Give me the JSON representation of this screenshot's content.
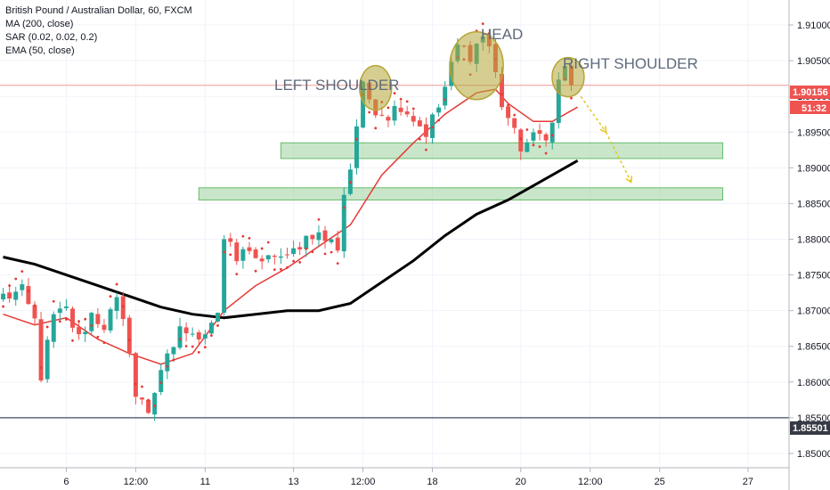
{
  "legend": {
    "title": "British Pound / Australian Dollar, 60, FXCM",
    "ma": "MA (200, close)",
    "sar": "SAR (0.02, 0.02, 0.2)",
    "ema": "EMA (50, close)"
  },
  "colors": {
    "bull": "#26a69a",
    "bear": "#ef5350",
    "ema": "#e53935",
    "ma": "#000000",
    "sar": "#e53935",
    "zone_fill": "#a5d6a7",
    "zone_stroke": "#66bb6a",
    "pattern_circle": "#b5a636",
    "projection": "#e6c619",
    "price_line": "#ef5350",
    "support_line": "#5d6a7a"
  },
  "chart_data": {
    "type": "candlestick",
    "symbol": "British Pound / Australian Dollar, 60, FXCM",
    "ylim": [
      1.848,
      1.9135
    ],
    "y_ticks": [
      "1.91000",
      "1.90500",
      "1.90000",
      "1.89500",
      "1.89000",
      "1.88500",
      "1.88000",
      "1.87500",
      "1.87000",
      "1.86500",
      "1.86000",
      "1.85500",
      "1.85000"
    ],
    "x_ticks": [
      "6",
      "12:00",
      "11",
      "13",
      "12:00",
      "18",
      "20",
      "12:00",
      "25",
      "27"
    ],
    "x_tick_bars": [
      10,
      21,
      32,
      46,
      57,
      68,
      82,
      93,
      104,
      118
    ],
    "bars_total": 125,
    "last_bar_index": 90,
    "current_price": "1.90156",
    "countdown": "51:32",
    "support_level": "1.85501",
    "support_value": 1.85501,
    "candles_anchor_close": [
      [
        0,
        1.872
      ],
      [
        3,
        1.8725
      ],
      [
        5,
        1.8685
      ],
      [
        6,
        1.861
      ],
      [
        8,
        1.869
      ],
      [
        10,
        1.87
      ],
      [
        12,
        1.866
      ],
      [
        14,
        1.8695
      ],
      [
        16,
        1.868
      ],
      [
        18,
        1.871
      ],
      [
        20,
        1.865
      ],
      [
        21,
        1.858
      ],
      [
        23,
        1.856
      ],
      [
        25,
        1.862
      ],
      [
        27,
        1.864
      ],
      [
        28,
        1.868
      ],
      [
        30,
        1.866
      ],
      [
        32,
        1.8675
      ],
      [
        34,
        1.87
      ],
      [
        35,
        1.88
      ],
      [
        37,
        1.877
      ],
      [
        39,
        1.879
      ],
      [
        41,
        1.876
      ],
      [
        43,
        1.878
      ],
      [
        45,
        1.877
      ],
      [
        47,
        1.8795
      ],
      [
        49,
        1.881
      ],
      [
        51,
        1.88
      ],
      [
        53,
        1.879
      ],
      [
        54,
        1.8865
      ],
      [
        55,
        1.89
      ],
      [
        56,
        1.896
      ],
      [
        57,
        1.901
      ],
      [
        59,
        1.8985
      ],
      [
        61,
        1.8975
      ],
      [
        63,
        1.899
      ],
      [
        65,
        1.897
      ],
      [
        67,
        1.895
      ],
      [
        69,
        1.8985
      ],
      [
        71,
        1.904
      ],
      [
        72,
        1.907
      ],
      [
        74,
        1.906
      ],
      [
        76,
        1.9085
      ],
      [
        77,
        1.907
      ],
      [
        78,
        1.903
      ],
      [
        79,
        1.899
      ],
      [
        80,
        1.897
      ],
      [
        81,
        1.8945
      ],
      [
        82,
        1.893
      ],
      [
        84,
        1.894
      ],
      [
        86,
        1.895
      ],
      [
        87,
        1.896
      ],
      [
        88,
        1.902
      ],
      [
        89,
        1.9045
      ],
      [
        90,
        1.9016
      ]
    ],
    "ema_50": [
      [
        0,
        1.8695
      ],
      [
        5,
        1.868
      ],
      [
        10,
        1.869
      ],
      [
        15,
        1.866
      ],
      [
        20,
        1.864
      ],
      [
        25,
        1.8625
      ],
      [
        30,
        1.864
      ],
      [
        35,
        1.87
      ],
      [
        40,
        1.8735
      ],
      [
        45,
        1.876
      ],
      [
        50,
        1.879
      ],
      [
        55,
        1.882
      ],
      [
        60,
        1.889
      ],
      [
        65,
        1.8935
      ],
      [
        70,
        1.8975
      ],
      [
        75,
        1.9005
      ],
      [
        78,
        1.901
      ],
      [
        80,
        1.899
      ],
      [
        84,
        1.8965
      ],
      [
        87,
        1.8965
      ],
      [
        91,
        1.8985
      ]
    ],
    "ma_200": [
      [
        0,
        1.8775
      ],
      [
        5,
        1.8765
      ],
      [
        10,
        1.875
      ],
      [
        15,
        1.8735
      ],
      [
        20,
        1.872
      ],
      [
        25,
        1.8705
      ],
      [
        30,
        1.8695
      ],
      [
        35,
        1.869
      ],
      [
        40,
        1.8695
      ],
      [
        45,
        1.87
      ],
      [
        50,
        1.87
      ],
      [
        55,
        1.871
      ],
      [
        60,
        1.874
      ],
      [
        65,
        1.877
      ],
      [
        70,
        1.8805
      ],
      [
        75,
        1.8835
      ],
      [
        80,
        1.8855
      ],
      [
        85,
        1.888
      ],
      [
        91,
        1.891
      ]
    ],
    "zones": [
      {
        "from_bar": 44,
        "to_bar": 114,
        "low": 1.8913,
        "high": 1.8935
      },
      {
        "from_bar": 31,
        "to_bar": 114,
        "low": 1.8855,
        "high": 1.8872
      }
    ],
    "pattern_labels": [
      "LEFT SHOULDER",
      "HEAD",
      "RIGHT SHOULDER"
    ],
    "pattern_circles": [
      {
        "label": "LEFT SHOULDER",
        "bar": 59,
        "price": 1.9012
      },
      {
        "label": "HEAD",
        "bar": 75,
        "price": 1.9043
      },
      {
        "label": "RIGHT SHOULDER",
        "bar": 89.5,
        "price": 1.9027
      }
    ],
    "projection": [
      [
        91.5,
        1.9
      ],
      [
        95.5,
        1.895
      ],
      [
        99.5,
        1.888
      ]
    ]
  }
}
